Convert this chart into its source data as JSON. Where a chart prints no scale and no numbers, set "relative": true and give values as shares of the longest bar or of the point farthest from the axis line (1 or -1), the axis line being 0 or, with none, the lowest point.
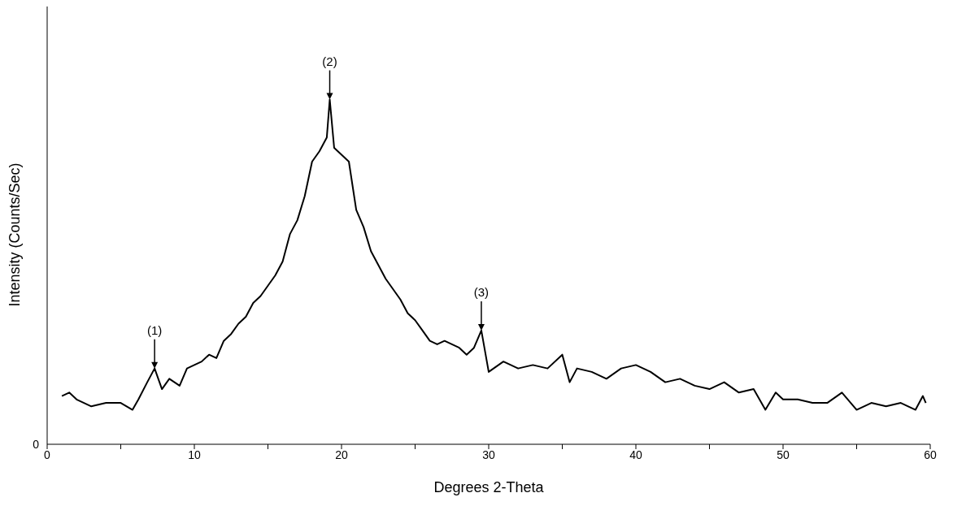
{
  "chart_data": {
    "type": "line",
    "relative": true,
    "xlabel": "Degrees 2-Theta",
    "ylabel": "Intensity (Counts/Sec)",
    "xlim": [
      0,
      60
    ],
    "xticks": [
      0,
      {
        "value": 5,
        "label": null
      },
      10,
      {
        "value": 15,
        "label": null
      },
      20,
      {
        "value": 25,
        "label": null
      },
      30,
      {
        "value": 35,
        "label": null
      },
      40,
      {
        "value": 45,
        "label": null
      },
      50,
      {
        "value": 55,
        "label": null
      },
      60
    ],
    "x": [
      1,
      1.5,
      2,
      3,
      4,
      5,
      5.8,
      6.2,
      6.8,
      7.3,
      7.8,
      8.3,
      9,
      9.5,
      10,
      10.5,
      11,
      11.5,
      12,
      12.5,
      13,
      13.5,
      14,
      14.5,
      15,
      15.5,
      16,
      16.5,
      17,
      17.5,
      18,
      18.5,
      19,
      19.2,
      19.5,
      20,
      20.5,
      21,
      21.5,
      22,
      22.5,
      23,
      23.5,
      24,
      24.5,
      25,
      25.5,
      26,
      26.5,
      27,
      27.5,
      28,
      28.5,
      29,
      29.5,
      30,
      31,
      32,
      33,
      34,
      35,
      35.5,
      36,
      37,
      38,
      39,
      40,
      41,
      42,
      43,
      44,
      45,
      46,
      47,
      48,
      48.8,
      49.5,
      50,
      51,
      52,
      53,
      54,
      55,
      56,
      57,
      58,
      59,
      59.5,
      59.7
    ],
    "series": [
      {
        "color": "#000000",
        "values": [
          0.14,
          0.15,
          0.13,
          0.11,
          0.12,
          0.12,
          0.1,
          0.13,
          0.18,
          0.22,
          0.16,
          0.19,
          0.17,
          0.22,
          0.23,
          0.24,
          0.26,
          0.25,
          0.3,
          0.32,
          0.35,
          0.37,
          0.41,
          0.43,
          0.46,
          0.49,
          0.53,
          0.61,
          0.65,
          0.72,
          0.82,
          0.85,
          0.89,
          1,
          0.86,
          0.84,
          0.82,
          0.68,
          0.63,
          0.56,
          0.52,
          0.48,
          0.45,
          0.42,
          0.38,
          0.36,
          0.33,
          0.3,
          0.29,
          0.3,
          0.29,
          0.28,
          0.26,
          0.28,
          0.33,
          0.21,
          0.24,
          0.22,
          0.23,
          0.22,
          0.26,
          0.18,
          0.22,
          0.21,
          0.19,
          0.22,
          0.23,
          0.21,
          0.18,
          0.19,
          0.17,
          0.16,
          0.18,
          0.15,
          0.16,
          0.1,
          0.15,
          0.13,
          0.13,
          0.12,
          0.12,
          0.15,
          0.1,
          0.12,
          0.11,
          0.12,
          0.1,
          0.14,
          0.12
        ]
      }
    ],
    "line_style": "solid",
    "annotations": [
      "0",
      {
        "text": "(1)",
        "x": 7.3,
        "y": 0.22
      },
      {
        "text": "(2)",
        "x": 19.2,
        "y": 1
      },
      {
        "text": "(3)",
        "x": 29.5,
        "y": 0.33
      }
    ]
  }
}
